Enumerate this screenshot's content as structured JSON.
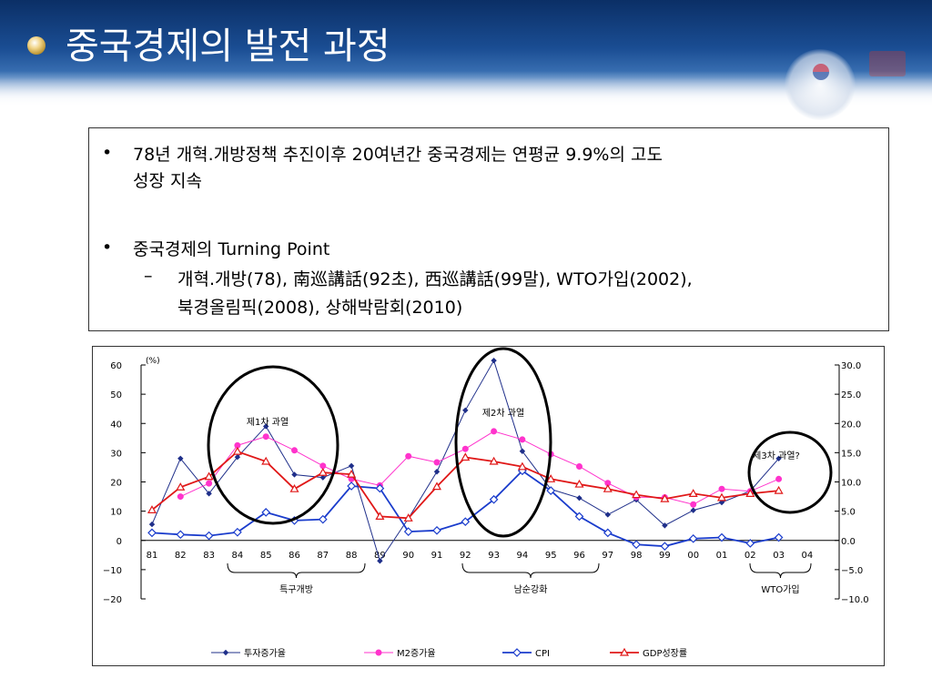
{
  "header": {
    "title": "중국경제의 발전 과정"
  },
  "textbox": {
    "bullets": [
      {
        "line1": "78년 개혁.개방정책 추진이후 20여년간 중국경제는 연평균 9.9%의 고도",
        "line2": "성장 지속"
      },
      {
        "line1": "중국경제의 Turning Point"
      }
    ],
    "sub": {
      "dash": "–",
      "line1": "개혁.개방(78), 南巡講話(92초), 西巡講話(99말), WTO가입(2002),",
      "line2": "북경올림픽(2008), 상해박람회(2010)"
    }
  },
  "chart_data": {
    "type": "line",
    "unit_label": "(%)",
    "categories": [
      "81",
      "82",
      "83",
      "84",
      "85",
      "86",
      "87",
      "88",
      "89",
      "90",
      "91",
      "92",
      "93",
      "94",
      "95",
      "96",
      "97",
      "98",
      "99",
      "00",
      "01",
      "02",
      "03",
      "04"
    ],
    "left_axis": {
      "ticks": [
        "60",
        "50",
        "40",
        "30",
        "20",
        "10",
        "0",
        "−10",
        "−20"
      ],
      "range": [
        -20,
        60
      ]
    },
    "right_axis": {
      "ticks": [
        "30.0",
        "25.0",
        "20.0",
        "15.0",
        "10.0",
        "5.0",
        "0.0",
        "−5.0",
        "−10.0"
      ],
      "range": [
        -10,
        30
      ]
    },
    "series": [
      {
        "name": "투자증가율",
        "axis": "left",
        "color": "#1f2f8a",
        "marker": "diamond-small",
        "values": [
          5.5,
          28,
          16,
          28.5,
          39,
          22.5,
          21.5,
          25.5,
          -7,
          7.5,
          23.5,
          44.5,
          61.5,
          30.5,
          17.5,
          14.5,
          8.8,
          13.9,
          5.1,
          10.3,
          13,
          16.9,
          28,
          null
        ]
      },
      {
        "name": "M2증가율",
        "axis": "left",
        "color": "#ff33cc",
        "marker": "circle",
        "values": [
          null,
          15,
          19.5,
          32.5,
          35.5,
          30.8,
          25.5,
          21,
          18.8,
          28.8,
          26.7,
          31.3,
          37.3,
          34.5,
          29.5,
          25.3,
          19.6,
          14.8,
          14.7,
          12.3,
          17.6,
          16.8,
          21,
          null
        ]
      },
      {
        "name": "CPI",
        "axis": "right",
        "color": "#1a3ccc",
        "marker": "diamond",
        "values": [
          1.3,
          1.0,
          0.8,
          1.4,
          4.8,
          3.4,
          3.6,
          9.3,
          8.9,
          1.5,
          1.7,
          3.2,
          7.0,
          11.9,
          8.5,
          4.1,
          1.3,
          -0.7,
          -1.0,
          0.3,
          0.5,
          -0.5,
          0.5,
          null
        ]
      },
      {
        "name": "GDP성장률",
        "axis": "right",
        "color": "#e01818",
        "marker": "triangle",
        "values": [
          5.2,
          9.1,
          10.9,
          15.2,
          13.5,
          8.8,
          11.6,
          11.3,
          4.1,
          3.8,
          9.2,
          14.2,
          13.5,
          12.6,
          10.5,
          9.6,
          8.8,
          7.8,
          7.1,
          8.0,
          7.3,
          8.0,
          8.5,
          null
        ]
      }
    ],
    "annotations": {
      "circle1": "제1차 과열",
      "circle2": "제2차 과열",
      "circle3": "제3차 과열?",
      "brace1": "특구개방",
      "brace2": "남순강화",
      "brace3": "WTO가입"
    }
  }
}
